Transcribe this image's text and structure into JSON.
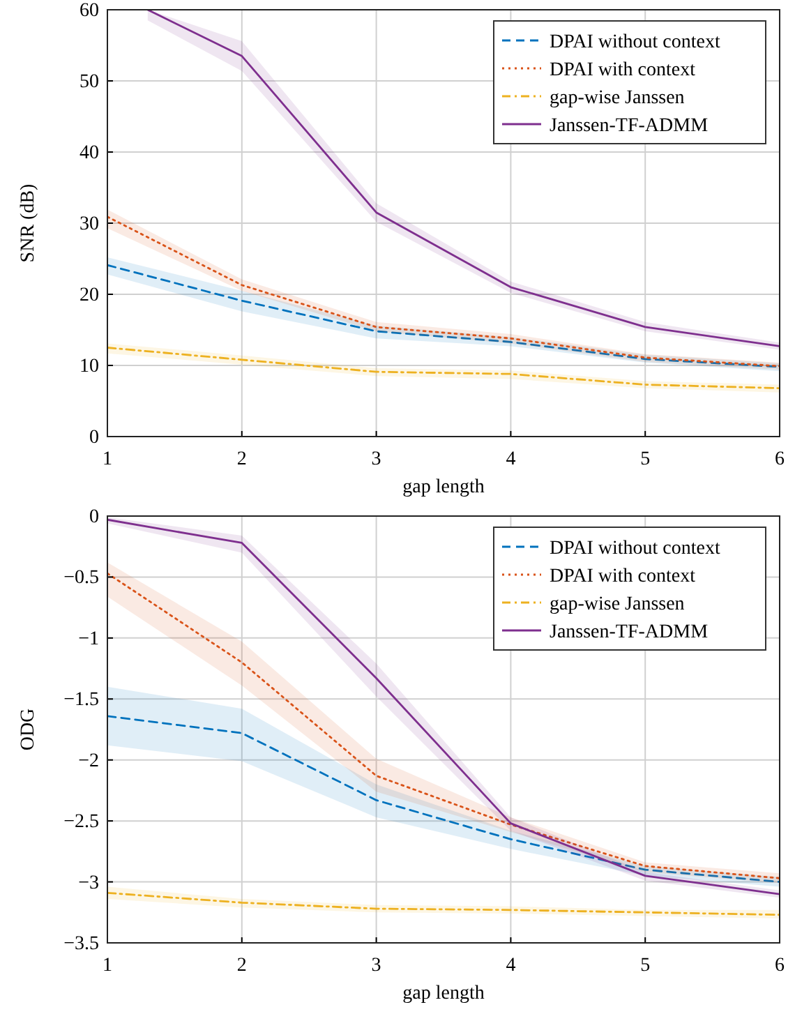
{
  "chart_data": [
    {
      "type": "line",
      "xlabel": "gap length",
      "ylabel": "SNR (dB)",
      "x": [
        1,
        2,
        3,
        4,
        5,
        6
      ],
      "xlim": [
        1,
        6
      ],
      "xticks": [
        1,
        2,
        3,
        4,
        5,
        6
      ],
      "ylim": [
        0,
        60
      ],
      "yticks": [
        0,
        10,
        20,
        30,
        40,
        50,
        60
      ],
      "grid": true,
      "legend": "top right",
      "series": [
        {
          "name": "DPAI without context",
          "color": "#0072bd",
          "line_style": "dashed",
          "values": [
            24.1,
            19.1,
            14.8,
            13.3,
            10.9,
            9.8
          ],
          "lower": [
            22.8,
            17.6,
            13.8,
            12.7,
            10.4,
            9.2
          ],
          "upper": [
            25.2,
            20.5,
            15.6,
            14.0,
            11.5,
            10.3
          ]
        },
        {
          "name": "DPAI with context",
          "color": "#d95319",
          "line_style": "dotted",
          "values": [
            30.9,
            21.3,
            15.4,
            13.8,
            11.1,
            9.9
          ],
          "lower": [
            29.3,
            20.5,
            14.8,
            13.1,
            10.5,
            9.4
          ],
          "upper": [
            31.9,
            22.1,
            16.1,
            14.4,
            11.6,
            10.4
          ]
        },
        {
          "name": "gap-wise Janssen",
          "color": "#edb120",
          "line_style": "dashdot",
          "values": [
            12.5,
            10.8,
            9.1,
            8.8,
            7.3,
            6.8
          ],
          "lower": [
            11.7,
            10.1,
            8.5,
            8.1,
            6.8,
            6.2
          ],
          "upper": [
            13.1,
            11.4,
            9.6,
            9.3,
            7.8,
            7.3
          ]
        },
        {
          "name": "Janssen-TF-ADMM",
          "color": "#7e2f8e",
          "line_style": "solid",
          "x": [
            1.3,
            2,
            3,
            4,
            5,
            6
          ],
          "values": [
            60,
            53.5,
            31.5,
            21.0,
            15.4,
            12.7
          ],
          "lower": [
            58.5,
            51.4,
            30.2,
            20.2,
            14.8,
            12.2
          ],
          "upper": [
            60,
            55.6,
            32.8,
            21.8,
            16.1,
            13.2
          ]
        }
      ]
    },
    {
      "type": "line",
      "xlabel": "gap length",
      "ylabel": "ODG",
      "x": [
        1,
        2,
        3,
        4,
        5,
        6
      ],
      "xlim": [
        1,
        6
      ],
      "xticks": [
        1,
        2,
        3,
        4,
        5,
        6
      ],
      "ylim": [
        -3.5,
        0
      ],
      "yticks": [
        -3.5,
        -3,
        -2.5,
        -2,
        -1.5,
        -1,
        -0.5,
        0
      ],
      "grid": true,
      "legend": "top right",
      "series": [
        {
          "name": "DPAI without context",
          "color": "#0072bd",
          "line_style": "dashed",
          "values": [
            -1.64,
            -1.78,
            -2.33,
            -2.65,
            -2.9,
            -3.0
          ],
          "lower": [
            -1.88,
            -2.01,
            -2.47,
            -2.73,
            -2.95,
            -3.04
          ],
          "upper": [
            -1.4,
            -1.58,
            -2.2,
            -2.58,
            -2.87,
            -2.96
          ]
        },
        {
          "name": "DPAI with context",
          "color": "#d95319",
          "line_style": "dotted",
          "values": [
            -0.47,
            -1.2,
            -2.13,
            -2.53,
            -2.87,
            -2.97
          ],
          "lower": [
            -0.66,
            -1.39,
            -2.26,
            -2.59,
            -2.92,
            -3.01
          ],
          "upper": [
            -0.38,
            -1.03,
            -1.99,
            -2.47,
            -2.84,
            -2.93
          ]
        },
        {
          "name": "gap-wise Janssen",
          "color": "#edb120",
          "line_style": "dashdot",
          "values": [
            -3.09,
            -3.17,
            -3.22,
            -3.23,
            -3.25,
            -3.27
          ],
          "lower": [
            -3.14,
            -3.21,
            -3.25,
            -3.26,
            -3.28,
            -3.3
          ],
          "upper": [
            -3.04,
            -3.14,
            -3.19,
            -3.2,
            -3.23,
            -3.23
          ]
        },
        {
          "name": "Janssen-TF-ADMM",
          "color": "#7e2f8e",
          "line_style": "solid",
          "values": [
            -0.03,
            -0.22,
            -1.33,
            -2.52,
            -2.95,
            -3.1
          ],
          "lower": [
            -0.06,
            -0.3,
            -1.48,
            -2.58,
            -2.99,
            -3.13
          ],
          "upper": [
            -0.01,
            -0.16,
            -1.21,
            -2.47,
            -2.92,
            -3.07
          ]
        }
      ]
    }
  ]
}
